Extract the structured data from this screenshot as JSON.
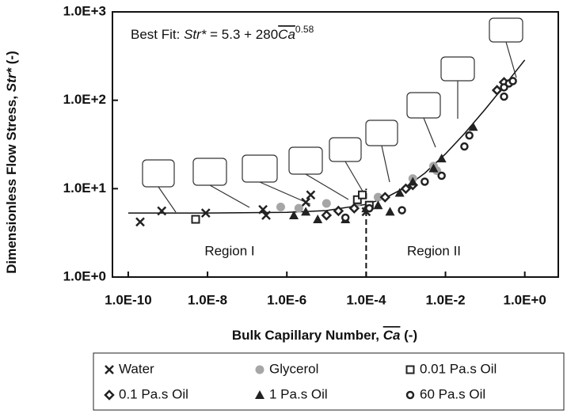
{
  "chart_data": {
    "type": "scatter",
    "annotation": {
      "prefix": "Best Fit: ",
      "var": "Str*",
      "middle": " =  5.3 + 280",
      "ca": "Ca",
      "exponent": "0.58"
    },
    "region_labels": [
      "Region I",
      "Region II"
    ],
    "x_label": {
      "text": "Bulk Capillary Number, ",
      "ca": "Ca",
      "unit": " (-)"
    },
    "y_label": {
      "text": "Dimensionless Flow Stress, ",
      "var": "Str*",
      "unit": " (-)"
    },
    "log_x": true,
    "log_y": true,
    "xlim": [
      4e-11,
      7
    ],
    "ylim": [
      1,
      1000
    ],
    "xticks": [
      {
        "value": 1e-10,
        "label": "1.0E-10"
      },
      {
        "value": 1e-08,
        "label": "1.0E-8"
      },
      {
        "value": 1e-06,
        "label": "1.0E-6"
      },
      {
        "value": 0.0001,
        "label": "1.0E-4"
      },
      {
        "value": 0.01,
        "label": "1.0E-2"
      },
      {
        "value": 1,
        "label": "1.0E+0"
      }
    ],
    "yticks": [
      {
        "value": 1,
        "label": "1.0E+0"
      },
      {
        "value": 10,
        "label": "1.0E+1"
      },
      {
        "value": 100,
        "label": "1.0E+2"
      },
      {
        "value": 1000,
        "label": "1.0E+3"
      }
    ],
    "divider": {
      "x": 0.0001,
      "y_top": 10
    },
    "fit_line": {
      "x": [
        1e-10,
        1e-08,
        1e-06,
        1e-05,
        0.0001,
        0.0003,
        0.001,
        0.003,
        0.01,
        0.03,
        0.1,
        0.3,
        1
      ],
      "values": [
        5.3,
        5.3,
        5.39,
        5.65,
        6.64,
        7.84,
        10.4,
        14.95,
        24.7,
        41.9,
        78.9,
        144.5,
        285.3
      ]
    },
    "series": [
      {
        "name": "Water",
        "marker": "x",
        "color": "#222",
        "x": [
          2e-10,
          7e-10,
          9e-09,
          2.5e-07,
          3e-07,
          3e-06,
          4e-06,
          0.0001
        ],
        "values": [
          4.2,
          5.6,
          5.3,
          5.8,
          5,
          7,
          8.5,
          5.5
        ]
      },
      {
        "name": "Glycerol",
        "marker": "dot",
        "color": "#a6a6a6",
        "x": [
          7e-07,
          2e-06,
          1e-05,
          6e-05,
          0.0002,
          0.0015,
          0.005,
          0.006
        ],
        "values": [
          6.2,
          6,
          6.8,
          7,
          8,
          13,
          18,
          16
        ]
      },
      {
        "name": "0.01 Pa.s Oil",
        "marker": "square",
        "color": "#222",
        "x": [
          5e-09,
          6e-05,
          8e-05,
          0.00012
        ],
        "values": [
          4.5,
          7.5,
          8.5,
          6.5
        ]
      },
      {
        "name": "0.1 Pa.s Oil",
        "marker": "diamond",
        "color": "#222",
        "x": [
          1e-05,
          2e-05,
          5e-05,
          0.0003,
          0.001,
          0.0015,
          0.2,
          0.3
        ],
        "values": [
          5,
          5.6,
          6,
          8,
          10,
          11,
          130,
          160
        ]
      },
      {
        "name": "1 Pa.s Oil",
        "marker": "triangle",
        "color": "#222",
        "x": [
          1.5e-06,
          3e-06,
          6e-06,
          3e-05,
          0.0001,
          0.0002,
          0.0004,
          0.0007,
          0.0015,
          0.005,
          0.008,
          0.05
        ],
        "values": [
          5,
          5.5,
          4.5,
          4.5,
          6,
          6.5,
          5.5,
          9,
          12,
          17,
          22,
          50
        ]
      },
      {
        "name": "60 Pa.s Oil",
        "marker": "circle",
        "color": "#222",
        "x": [
          3e-05,
          0.00012,
          0.0008,
          0.003,
          0.008,
          0.03,
          0.04,
          0.3,
          0.4,
          0.5,
          0.3
        ],
        "values": [
          4.7,
          6,
          5.7,
          12,
          14,
          30,
          40,
          140,
          155,
          165,
          110
        ]
      }
    ]
  }
}
